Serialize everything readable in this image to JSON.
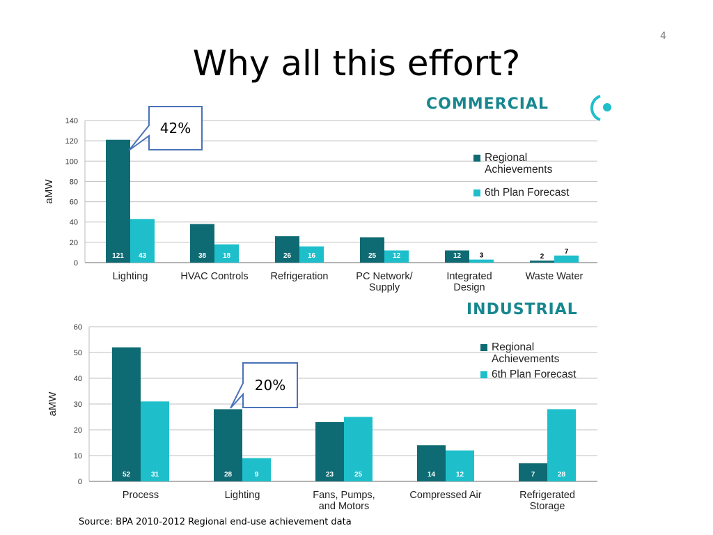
{
  "slide": {
    "number": "4",
    "title": "Why all this effort?",
    "source": "Source: BPA 2010-2012 Regional end-use achievement data"
  },
  "colors": {
    "regional": "#0f6b73",
    "forecast": "#1ebfcb",
    "header": "#17878f",
    "callout_border": "#4a72b8"
  },
  "callouts": {
    "commercial_lighting": "42%",
    "industrial_lighting": "20%"
  },
  "chart_data": [
    {
      "type": "bar",
      "title": "COMMERCIAL",
      "ylabel": "aMW",
      "xlabel": "",
      "ylim": [
        0,
        140
      ],
      "yticks": [
        0,
        20,
        40,
        60,
        80,
        100,
        120,
        140
      ],
      "grid": true,
      "legend_position": "right",
      "categories": [
        "Lighting",
        "HVAC Controls",
        "Refrigeration",
        "PC Network/ Supply",
        "Integrated Design",
        "Waste Water"
      ],
      "series": [
        {
          "name": "Regional Achievements",
          "values": [
            121,
            38,
            26,
            25,
            12,
            2
          ]
        },
        {
          "name": "6th Plan Forecast",
          "values": [
            43,
            18,
            16,
            12,
            3,
            7
          ]
        }
      ]
    },
    {
      "type": "bar",
      "title": "INDUSTRIAL",
      "ylabel": "aMW",
      "xlabel": "",
      "ylim": [
        0,
        60
      ],
      "yticks": [
        0,
        10,
        20,
        30,
        40,
        50,
        60
      ],
      "grid": true,
      "legend_position": "top-right",
      "categories": [
        "Process",
        "Lighting",
        "Fans, Pumps, and Motors",
        "Compressed Air",
        "Refrigerated Storage"
      ],
      "series": [
        {
          "name": "Regional Achievements",
          "values": [
            52,
            28,
            23,
            14,
            7
          ]
        },
        {
          "name": "6th Plan Forecast",
          "values": [
            31,
            9,
            25,
            12,
            28
          ]
        }
      ]
    }
  ]
}
